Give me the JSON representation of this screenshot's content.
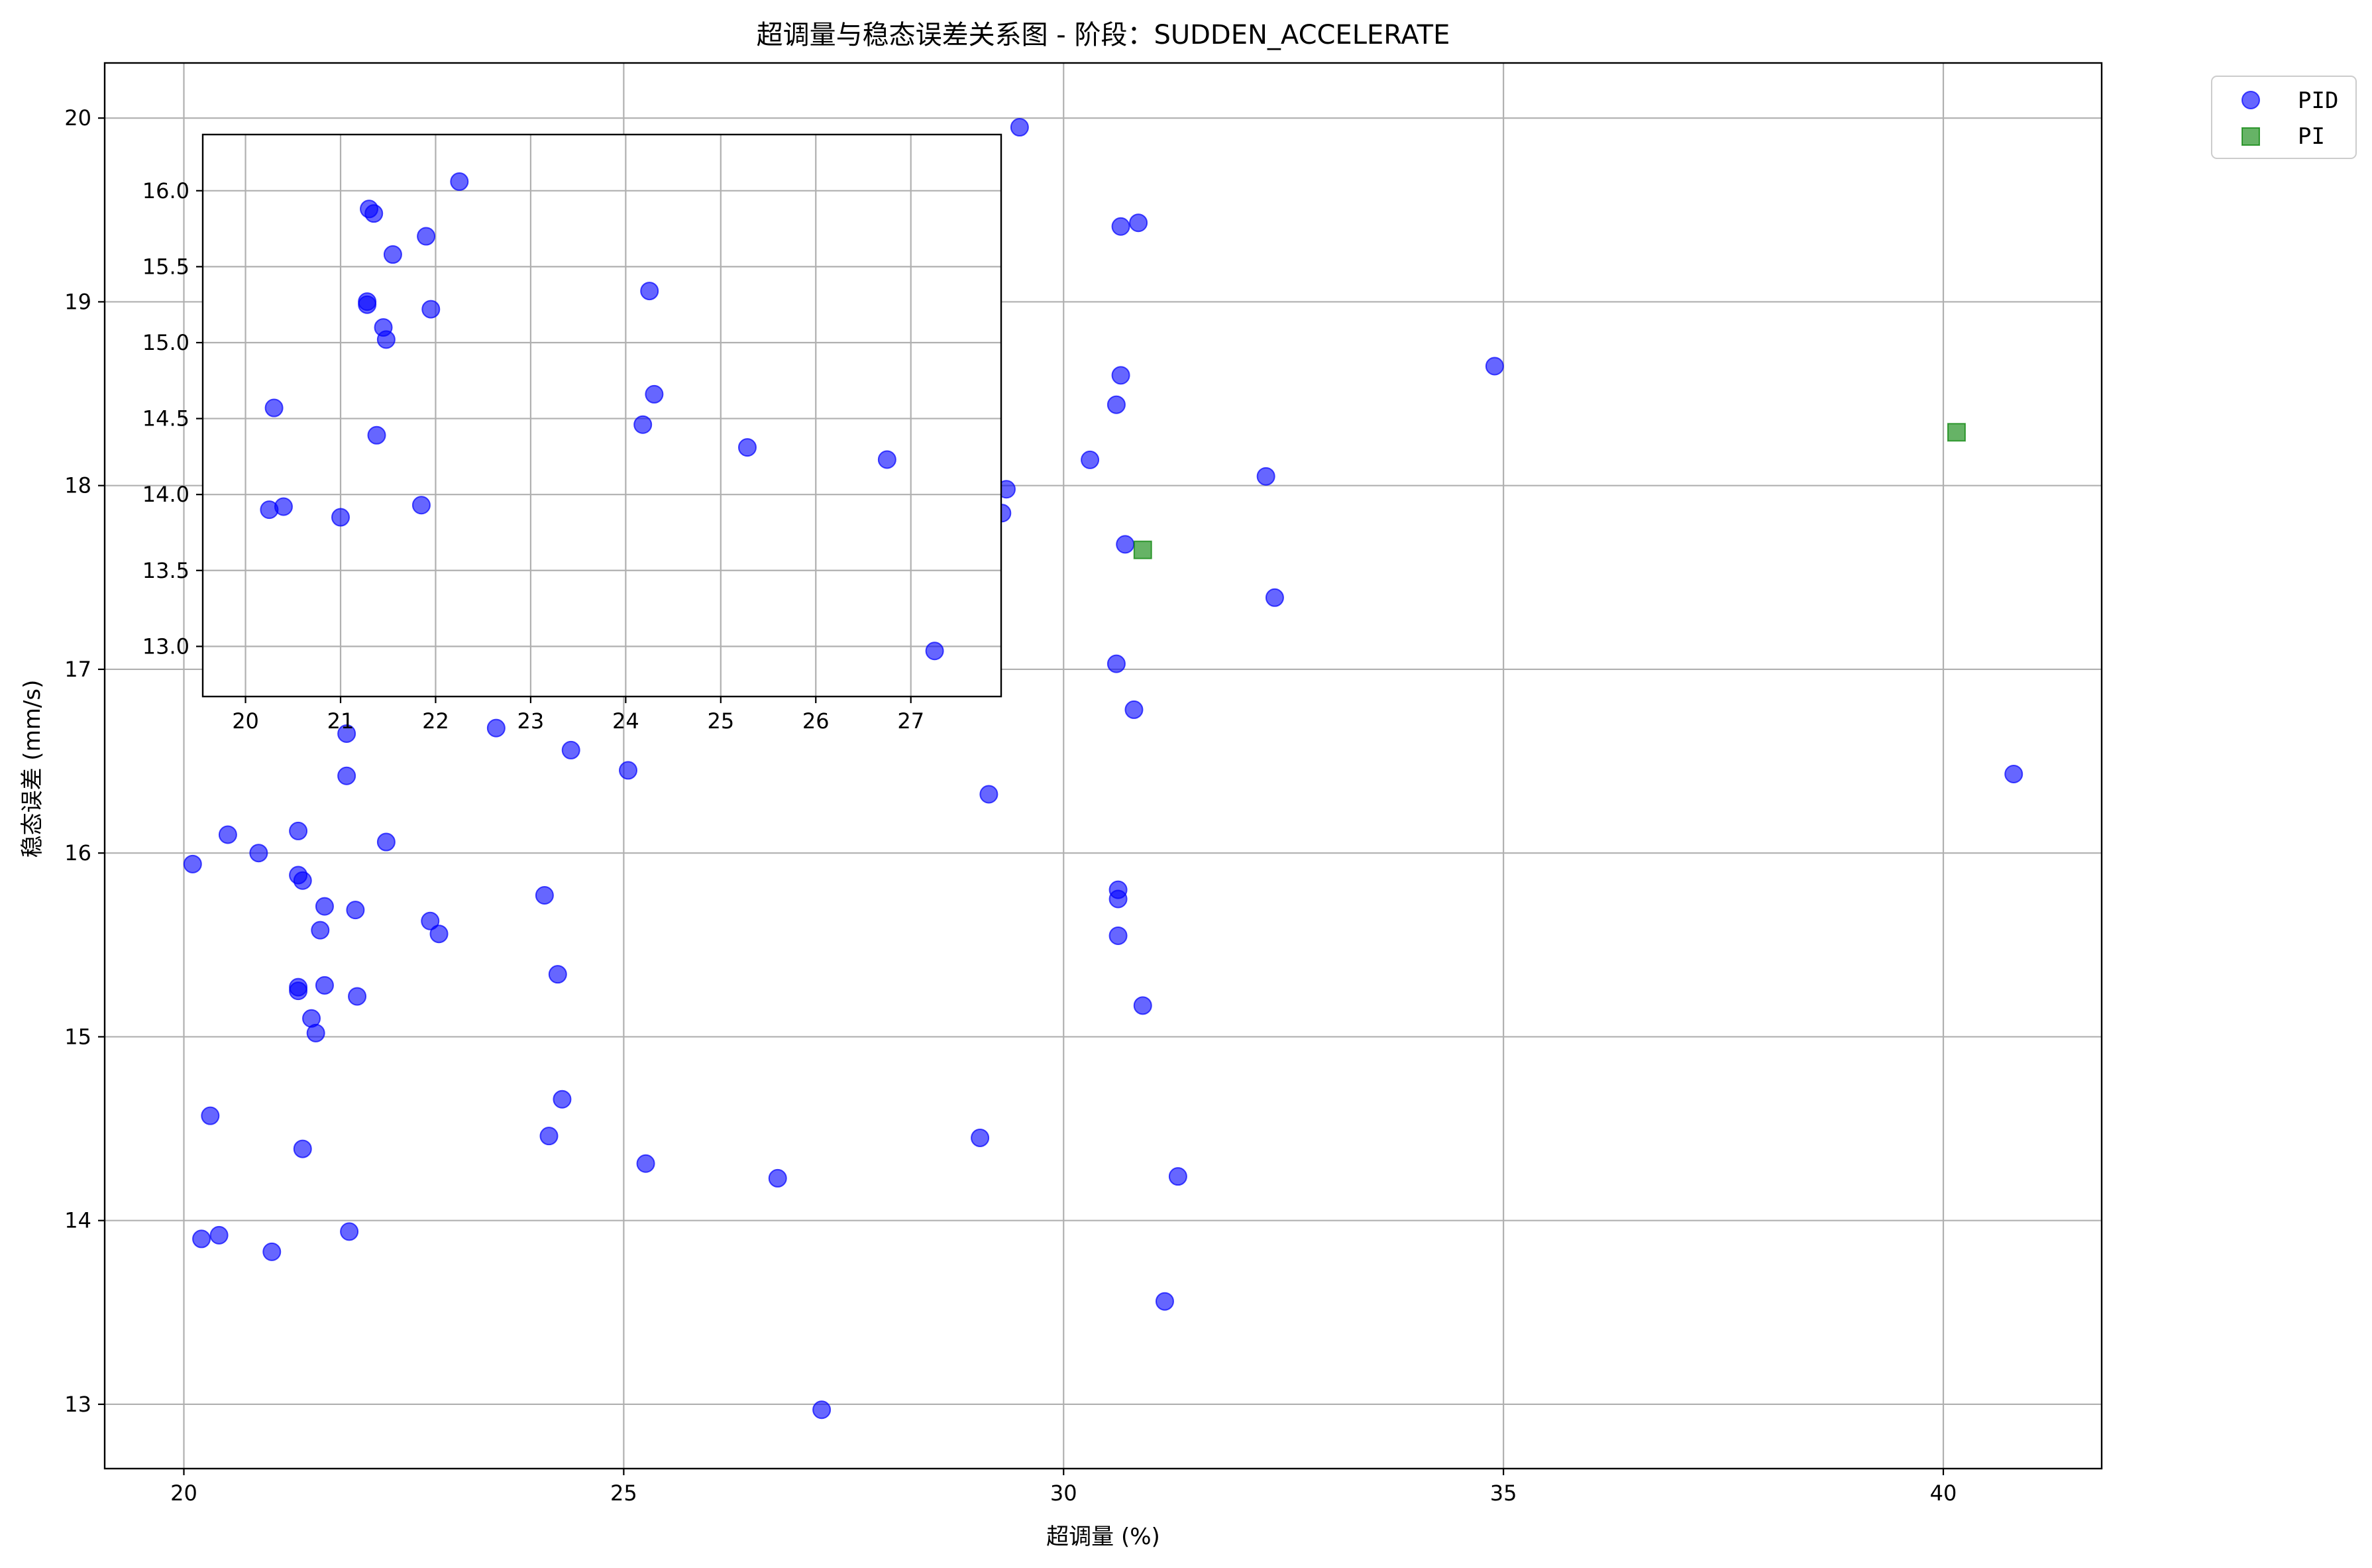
{
  "chart_data": {
    "type": "scatter",
    "title": "超调量与稳态误差关系图 - 阶段：SUDDEN_ACCELERATE",
    "xlabel": "超调量 (%)",
    "ylabel": "稳态误差 (mm/s)",
    "xlim": [
      19.1,
      41.8
    ],
    "ylim": [
      12.65,
      20.3
    ],
    "xticks": [
      20,
      25,
      30,
      35,
      40
    ],
    "yticks": [
      13,
      14,
      15,
      16,
      17,
      18,
      19,
      20
    ],
    "grid": true,
    "legend_position": "outside-top-right",
    "series": [
      {
        "name": "PID",
        "marker": "circle",
        "color": "#0000ff",
        "points": [
          [
            20.1,
            15.94
          ],
          [
            20.3,
            14.57
          ],
          [
            20.2,
            13.9
          ],
          [
            20.4,
            13.92
          ],
          [
            20.5,
            16.1
          ],
          [
            20.85,
            16.0
          ],
          [
            21.0,
            13.83
          ],
          [
            21.3,
            16.12
          ],
          [
            21.3,
            15.88
          ],
          [
            21.35,
            15.85
          ],
          [
            21.3,
            15.27
          ],
          [
            21.3,
            15.25
          ],
          [
            21.35,
            14.39
          ],
          [
            21.45,
            15.1
          ],
          [
            21.5,
            15.02
          ],
          [
            21.55,
            15.58
          ],
          [
            21.6,
            15.71
          ],
          [
            21.6,
            15.28
          ],
          [
            21.85,
            16.42
          ],
          [
            21.85,
            16.65
          ],
          [
            21.88,
            13.94
          ],
          [
            21.95,
            15.69
          ],
          [
            21.97,
            15.22
          ],
          [
            22.3,
            16.06
          ],
          [
            22.8,
            15.63
          ],
          [
            22.9,
            15.56
          ],
          [
            23.55,
            16.68
          ],
          [
            24.1,
            15.77
          ],
          [
            24.15,
            14.46
          ],
          [
            24.25,
            15.34
          ],
          [
            24.3,
            14.66
          ],
          [
            24.4,
            16.56
          ],
          [
            25.05,
            16.45
          ],
          [
            25.25,
            14.31
          ],
          [
            26.75,
            14.23
          ],
          [
            27.25,
            12.97
          ],
          [
            29.05,
            14.45
          ],
          [
            29.15,
            16.32
          ],
          [
            29.35,
            17.98
          ],
          [
            29.3,
            17.85
          ],
          [
            29.5,
            19.95
          ],
          [
            30.3,
            18.14
          ],
          [
            30.6,
            18.44
          ],
          [
            30.6,
            17.03
          ],
          [
            30.62,
            15.8
          ],
          [
            30.62,
            15.75
          ],
          [
            30.62,
            15.55
          ],
          [
            30.65,
            19.41
          ],
          [
            30.65,
            18.6
          ],
          [
            30.7,
            17.68
          ],
          [
            30.8,
            16.78
          ],
          [
            30.85,
            19.43
          ],
          [
            30.9,
            15.17
          ],
          [
            31.15,
            13.56
          ],
          [
            31.3,
            14.24
          ],
          [
            32.3,
            18.05
          ],
          [
            32.4,
            17.39
          ],
          [
            34.9,
            18.65
          ],
          [
            40.8,
            16.43
          ]
        ]
      },
      {
        "name": "PI",
        "marker": "square",
        "color": "#008000",
        "points": [
          [
            30.9,
            17.65
          ],
          [
            40.15,
            18.29
          ]
        ]
      }
    ],
    "inset": {
      "xlim": [
        19.55,
        27.95
      ],
      "ylim": [
        12.67,
        16.37
      ],
      "xticks": [
        20,
        21,
        22,
        23,
        24,
        25,
        26,
        27
      ],
      "yticks": [
        13.0,
        13.5,
        14.0,
        14.5,
        15.0,
        15.5,
        16.0
      ],
      "ytick_labels": [
        "13.0",
        "13.5",
        "14.0",
        "14.5",
        "15.0",
        "15.5",
        "16.0"
      ],
      "grid": true,
      "points": [
        [
          20.25,
          13.9
        ],
        [
          20.3,
          14.57
        ],
        [
          20.4,
          13.92
        ],
        [
          21.0,
          13.85
        ],
        [
          21.3,
          15.88
        ],
        [
          21.35,
          15.85
        ],
        [
          21.28,
          15.27
        ],
        [
          21.28,
          15.25
        ],
        [
          21.38,
          14.39
        ],
        [
          21.45,
          15.1
        ],
        [
          21.48,
          15.02
        ],
        [
          21.55,
          15.58
        ],
        [
          21.85,
          13.93
        ],
        [
          21.9,
          15.7
        ],
        [
          21.95,
          15.22
        ],
        [
          22.25,
          16.06
        ],
        [
          24.18,
          14.46
        ],
        [
          24.25,
          15.34
        ],
        [
          24.3,
          14.66
        ],
        [
          25.28,
          14.31
        ],
        [
          26.75,
          14.23
        ],
        [
          27.25,
          12.97
        ]
      ]
    }
  }
}
